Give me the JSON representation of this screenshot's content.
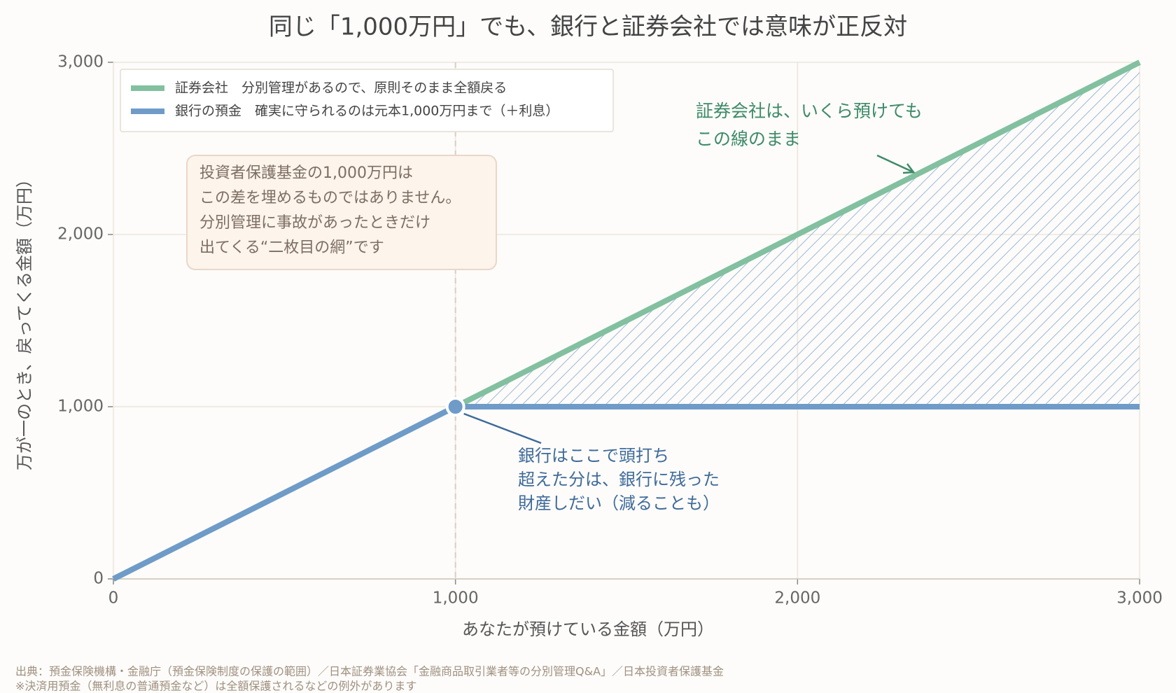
{
  "chart_data": {
    "type": "line",
    "title": "同じ「1,000万円」でも、銀行と証券会社では意味が正反対",
    "x": [
      0,
      1000,
      3000
    ],
    "series": [
      {
        "name": "証券会社　分別管理があるので、原則そのまま全額戻る",
        "color": "#82c0a0",
        "values": [
          0,
          1000,
          3000
        ]
      },
      {
        "name": "銀行の預金　確実に守られるのは元本1,000万円まで（＋利息）",
        "color": "#6f9bc8",
        "values": [
          0,
          1000,
          1000
        ]
      }
    ],
    "xlim": [
      0,
      3000
    ],
    "ylim": [
      0,
      3000
    ],
    "xticks": [
      0,
      {
        "value": 1000,
        "label": "1,000"
      },
      {
        "value": 2000,
        "label": "2,000"
      },
      {
        "value": 3000,
        "label": "3,000"
      }
    ],
    "yticks": [
      0,
      {
        "value": 1000,
        "label": "1,000"
      },
      {
        "value": 2000,
        "label": "2,000"
      },
      {
        "value": 3000,
        "label": "3,000"
      }
    ],
    "xlabel": "あなたが預けている金額（万円）",
    "ylabel": "万が一のとき、戻ってくる金額（万円）",
    "grid": true,
    "legend": "upper left",
    "annotations": [
      {
        "lines": [
          "投資者保護基金の1,000万円は",
          "この差を埋めるものではありません。",
          "分別管理に事故があったときだけ",
          "出てくる“二枚目の網”です"
        ]
      },
      {
        "lines": [
          "証券会社は、いくら預けても",
          "この線のまま"
        ]
      },
      {
        "lines": [
          "銀行はここで頭打ち",
          "超えた分は、銀行に残った",
          "財産しだい（減ることも）"
        ]
      }
    ],
    "notes": [
      "出典：預金保険機構・金融庁（預金保険制度の保護の範囲）／日本証券業協会「金融商品取引業者等の分別管理Q&A」／日本投資者保護基金",
      "※決済用預金（無利息の普通預金など）は全額保護されるなどの例外があります"
    ]
  }
}
